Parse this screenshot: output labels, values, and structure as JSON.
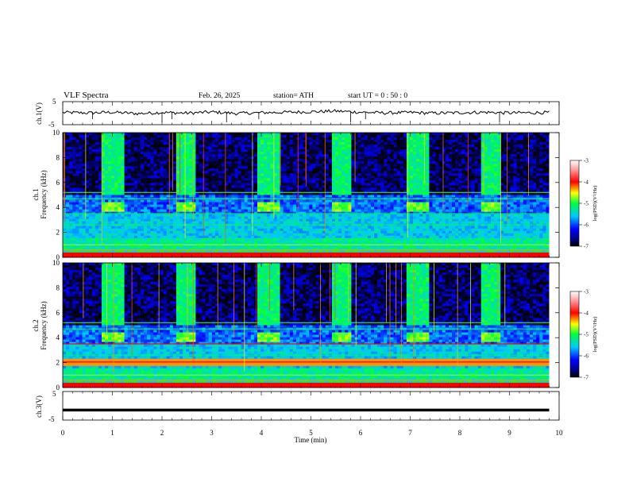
{
  "header": {
    "title": "VLF  Spectra",
    "date": "Feb. 26, 2025",
    "station": "station= ATH",
    "start": "start  UT  =    0 : 50 : 0"
  },
  "chart_data": [
    {
      "type": "line",
      "panel": "ch1-waveform",
      "ylabel": "ch.1(V)",
      "ylim": [
        -5,
        5
      ],
      "yticks": [
        "5",
        "-5"
      ],
      "xlim": [
        0,
        10
      ],
      "x": [
        0,
        0.5,
        1,
        1.5,
        2,
        2.5,
        3,
        3.5,
        4,
        4.5,
        5,
        5.5,
        6,
        6.5,
        7,
        7.5,
        8,
        8.5,
        9,
        9.5,
        9.8
      ],
      "values": [
        0.3,
        0.1,
        0.4,
        -0.2,
        0.3,
        0.0,
        0.5,
        -0.1,
        0.2,
        0.4,
        0.6,
        0.9,
        0.4,
        0.1,
        0.3,
        0.0,
        0.2,
        0.4,
        0.1,
        0.2,
        0.3
      ]
    },
    {
      "type": "heatmap",
      "panel": "ch1-spectrogram",
      "ylabel": "ch.1 Frequency (kHz)",
      "ylim": [
        0,
        10
      ],
      "yticks": [
        "0",
        "2",
        "4",
        "6",
        "8",
        "10"
      ],
      "xlim": [
        0,
        10
      ],
      "colorbar_label": "log(PSD)(V²/Hz)",
      "colorbar_range": [
        -7,
        -3
      ],
      "colorbar_ticks": [
        "-3",
        "-4",
        "-5",
        "-6",
        "-7"
      ],
      "burst_windows_min": [
        [
          0.8,
          1.25
        ],
        [
          2.3,
          2.7
        ],
        [
          3.9,
          4.35
        ],
        [
          5.4,
          5.8
        ],
        [
          6.95,
          7.4
        ],
        [
          8.45,
          8.85
        ]
      ],
      "burst_band_khz": [
        3.6,
        4.4
      ]
    },
    {
      "type": "heatmap",
      "panel": "ch2-spectrogram",
      "ylabel": "ch.2 Frequency (kHz)",
      "ylim": [
        0,
        10
      ],
      "yticks": [
        "0",
        "2",
        "4",
        "6",
        "8",
        "10"
      ],
      "xlim": [
        0,
        10
      ],
      "colorbar_label": "log(PSD)(V²/Hz)",
      "colorbar_range": [
        -7,
        -3
      ],
      "colorbar_ticks": [
        "-3",
        "-4",
        "-5",
        "-6",
        "-7"
      ],
      "burst_windows_min": [
        [
          0.8,
          1.25
        ],
        [
          2.3,
          2.7
        ],
        [
          3.9,
          4.35
        ],
        [
          5.4,
          5.8
        ],
        [
          6.95,
          7.4
        ],
        [
          8.45,
          8.85
        ]
      ],
      "burst_band_khz": [
        3.6,
        4.4
      ]
    },
    {
      "type": "line",
      "panel": "ch3-waveform",
      "ylabel": "ch.3(V)",
      "ylim": [
        -5,
        5
      ],
      "yticks": [
        "5",
        "-5"
      ],
      "xlim": [
        0,
        10
      ],
      "x": [
        0,
        9.8
      ],
      "values": [
        -1.5,
        -1.5
      ]
    }
  ],
  "xaxis": {
    "label": "Time  (min)",
    "ticks": [
      "0",
      "1",
      "2",
      "3",
      "4",
      "5",
      "6",
      "7",
      "8",
      "9",
      "10"
    ]
  }
}
